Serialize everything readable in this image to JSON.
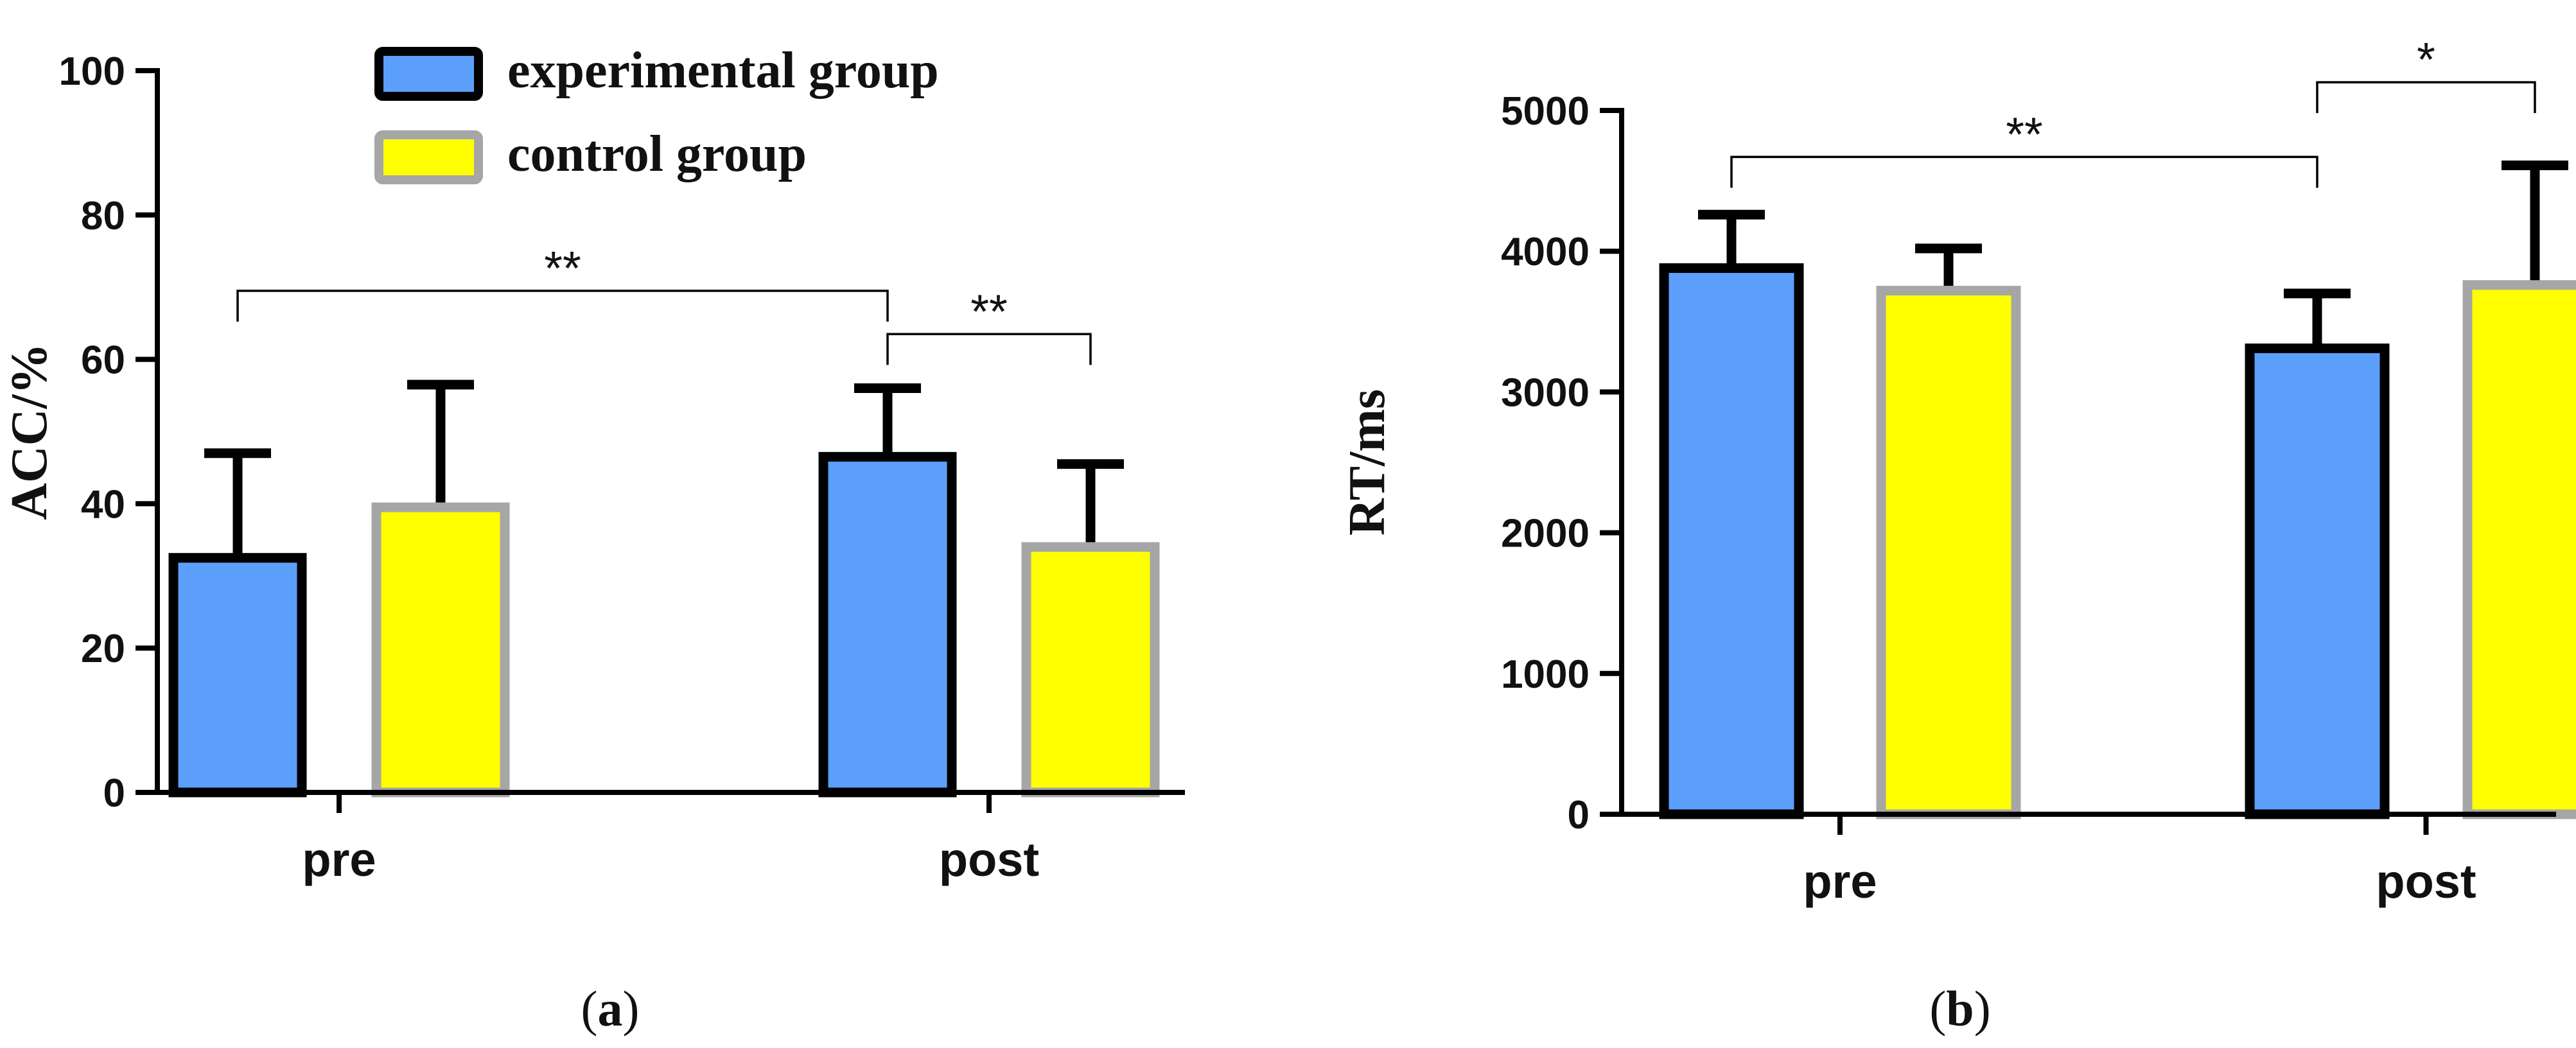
{
  "chart_data": [
    {
      "id": "a",
      "type": "bar",
      "panel_label": "(a)",
      "panel_letter": "a",
      "ylabel": "ACC/%",
      "categories": [
        "pre",
        "post"
      ],
      "ylim": [
        0,
        100
      ],
      "yticks": [
        0,
        20,
        40,
        60,
        80,
        100
      ],
      "series": [
        {
          "name": "experimental group",
          "key": "experimental",
          "values": [
            32.5,
            46.5
          ],
          "errors": [
            14.5,
            9.5
          ]
        },
        {
          "name": "control group",
          "key": "control",
          "values": [
            39.5,
            34.0
          ],
          "errors": [
            17.0,
            11.5
          ]
        }
      ],
      "significance": [
        {
          "label": "**",
          "from": {
            "category": 0,
            "series": 0
          },
          "to": {
            "category": 1,
            "series": 0
          },
          "level": 69.5
        },
        {
          "label": "**",
          "from": {
            "category": 1,
            "series": 0
          },
          "to": {
            "category": 1,
            "series": 1
          },
          "level": 63.5
        }
      ],
      "legend": {
        "position": "top-center",
        "entries": [
          "experimental group",
          "control group"
        ]
      }
    },
    {
      "id": "b",
      "type": "bar",
      "panel_label": "(b)",
      "panel_letter": "b",
      "ylabel": "RT/ms",
      "categories": [
        "pre",
        "post"
      ],
      "ylim": [
        0,
        5000
      ],
      "yticks": [
        0,
        1000,
        2000,
        3000,
        4000,
        5000
      ],
      "series": [
        {
          "name": "experimental group",
          "key": "experimental",
          "values": [
            3880,
            3310
          ],
          "errors": [
            380,
            390
          ]
        },
        {
          "name": "control group",
          "key": "control",
          "values": [
            3720,
            3760
          ],
          "errors": [
            300,
            850
          ]
        }
      ],
      "significance": [
        {
          "label": "**",
          "from": {
            "category": 0,
            "series": 0
          },
          "to": {
            "category": 1,
            "series": 0
          },
          "level": 4670
        },
        {
          "label": "*",
          "from": {
            "category": 1,
            "series": 0
          },
          "to": {
            "category": 1,
            "series": 1
          },
          "level": 5200
        }
      ]
    }
  ],
  "colors": {
    "experimental_fill": "#5b9ffb",
    "experimental_edge": "#000000",
    "control_fill": "#ffff00",
    "control_edge": "#a6a6a6",
    "axis": "#000000",
    "text": "#111111"
  }
}
